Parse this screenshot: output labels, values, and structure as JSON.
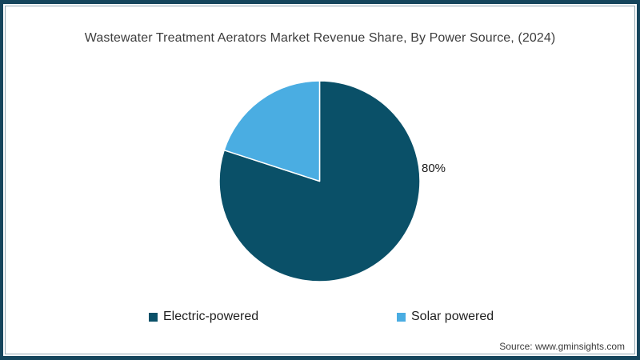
{
  "title": "Wastewater Treatment Aerators Market Revenue Share, By Power Source, (2024)",
  "source": "Source: www.gminsights.com",
  "colors": {
    "frame": "#15455c",
    "electric": "#0a5068",
    "solar": "#4aade2",
    "slice_separator": "#ffffff"
  },
  "chart_data": {
    "type": "pie",
    "title": "Wastewater Treatment Aerators Market Revenue Share, By Power Source, (2024)",
    "start_angle_deg": 0,
    "direction": "clockwise",
    "legend_position": "bottom",
    "slices": [
      {
        "label": "Electric-powered",
        "value": 80,
        "color": "#0a5068",
        "data_label": "80%"
      },
      {
        "label": "Solar powered",
        "value": 20,
        "color": "#4aade2",
        "data_label": ""
      }
    ]
  },
  "legend": {
    "items": [
      {
        "label": "Electric-powered",
        "color": "#0a5068"
      },
      {
        "label": "Solar powered",
        "color": "#4aade2"
      }
    ]
  }
}
